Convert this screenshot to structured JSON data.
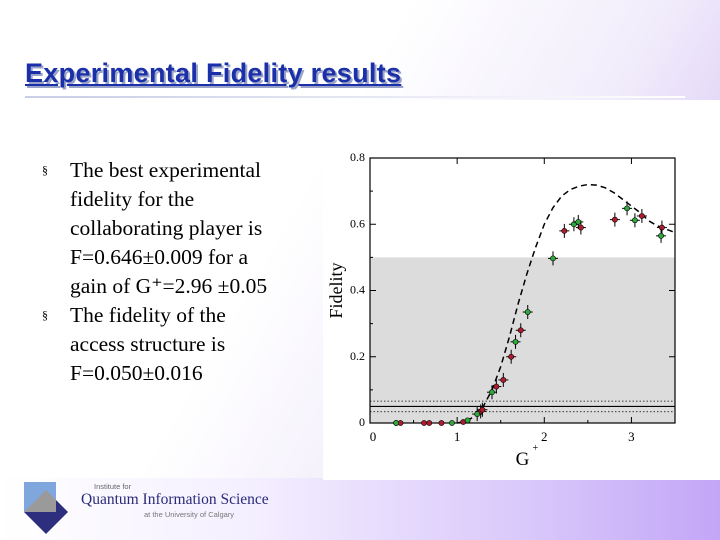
{
  "slide": {
    "title": "Experimental Fidelity results",
    "bullets": [
      {
        "marker": "§",
        "lines": [
          "The best experimental",
          "fidelity for the",
          "collaborating player is",
          "F=0.646±0.009 for a",
          "gain of G⁺=2.96 ±0.05"
        ]
      },
      {
        "marker": "§",
        "lines": [
          "The fidelity of the",
          "access structure is",
          "F=0.050±0.016"
        ]
      }
    ]
  },
  "logo": {
    "line1": "Institute for",
    "line2": "Quantum Information Science",
    "line3": "at the University of Calgary"
  },
  "colors": {
    "title": "#1a2fa8",
    "red_points": "#b01c2e",
    "green_points": "#2fa83a",
    "shade": "#dcdcdc",
    "logo_dark": "#2e2e7e",
    "logo_light": "#7fa6dd"
  },
  "chart_data": {
    "type": "scatter",
    "xlabel": "G+",
    "ylabel": "Fidelity",
    "xlim": [
      0,
      3.5
    ],
    "ylim": [
      0,
      0.8
    ],
    "xticks": [
      "0",
      "1",
      "2",
      "3"
    ],
    "xtick_values": [
      0,
      1,
      2,
      3
    ],
    "yticks": [
      "0",
      "0.2",
      "0.4",
      "0.6",
      "0.8"
    ],
    "ytick_values": [
      0,
      0.2,
      0.4,
      0.6,
      0.8
    ],
    "shaded_band": [
      0,
      0.5
    ],
    "hlines": [
      {
        "y": 0.05,
        "style": "solid"
      },
      {
        "y": 0.066,
        "style": "dotted"
      },
      {
        "y": 0.034,
        "style": "dotted"
      }
    ],
    "series": [
      {
        "name": "red",
        "x": [
          0.3,
          0.35,
          0.62,
          0.68,
          0.82,
          1.07,
          1.27,
          1.29,
          1.45,
          1.53,
          1.62,
          1.73,
          2.23,
          2.42,
          2.81,
          3.12,
          3.35
        ],
        "y": [
          0,
          0,
          0,
          0,
          0,
          0.003,
          0.035,
          0.04,
          0.11,
          0.13,
          0.2,
          0.28,
          0.58,
          0.59,
          0.614,
          0.625,
          0.59
        ]
      },
      {
        "name": "green",
        "x": [
          0.3,
          0.94,
          1.12,
          1.23,
          1.4,
          1.67,
          1.81,
          2.1,
          2.34,
          2.39,
          2.95,
          3.04,
          3.34
        ],
        "y": [
          0,
          0,
          0.008,
          0.027,
          0.093,
          0.245,
          0.335,
          0.497,
          0.6,
          0.607,
          0.648,
          0.612,
          0.565
        ]
      },
      {
        "name": "theory",
        "style": "dashed",
        "x": [
          1.0,
          1.1,
          1.2,
          1.3,
          1.4,
          1.5,
          1.6,
          1.7,
          1.8,
          1.9,
          2.0,
          2.1,
          2.2,
          2.3,
          2.4,
          2.5,
          2.6,
          2.7,
          2.8,
          2.9,
          3.0,
          3.1,
          3.2,
          3.3,
          3.4,
          3.5
        ],
        "y": [
          0,
          0.005,
          0.02,
          0.05,
          0.1,
          0.17,
          0.26,
          0.36,
          0.45,
          0.53,
          0.6,
          0.65,
          0.685,
          0.705,
          0.715,
          0.72,
          0.718,
          0.71,
          0.695,
          0.675,
          0.655,
          0.635,
          0.61,
          0.595,
          0.585,
          0.575
        ]
      }
    ]
  }
}
